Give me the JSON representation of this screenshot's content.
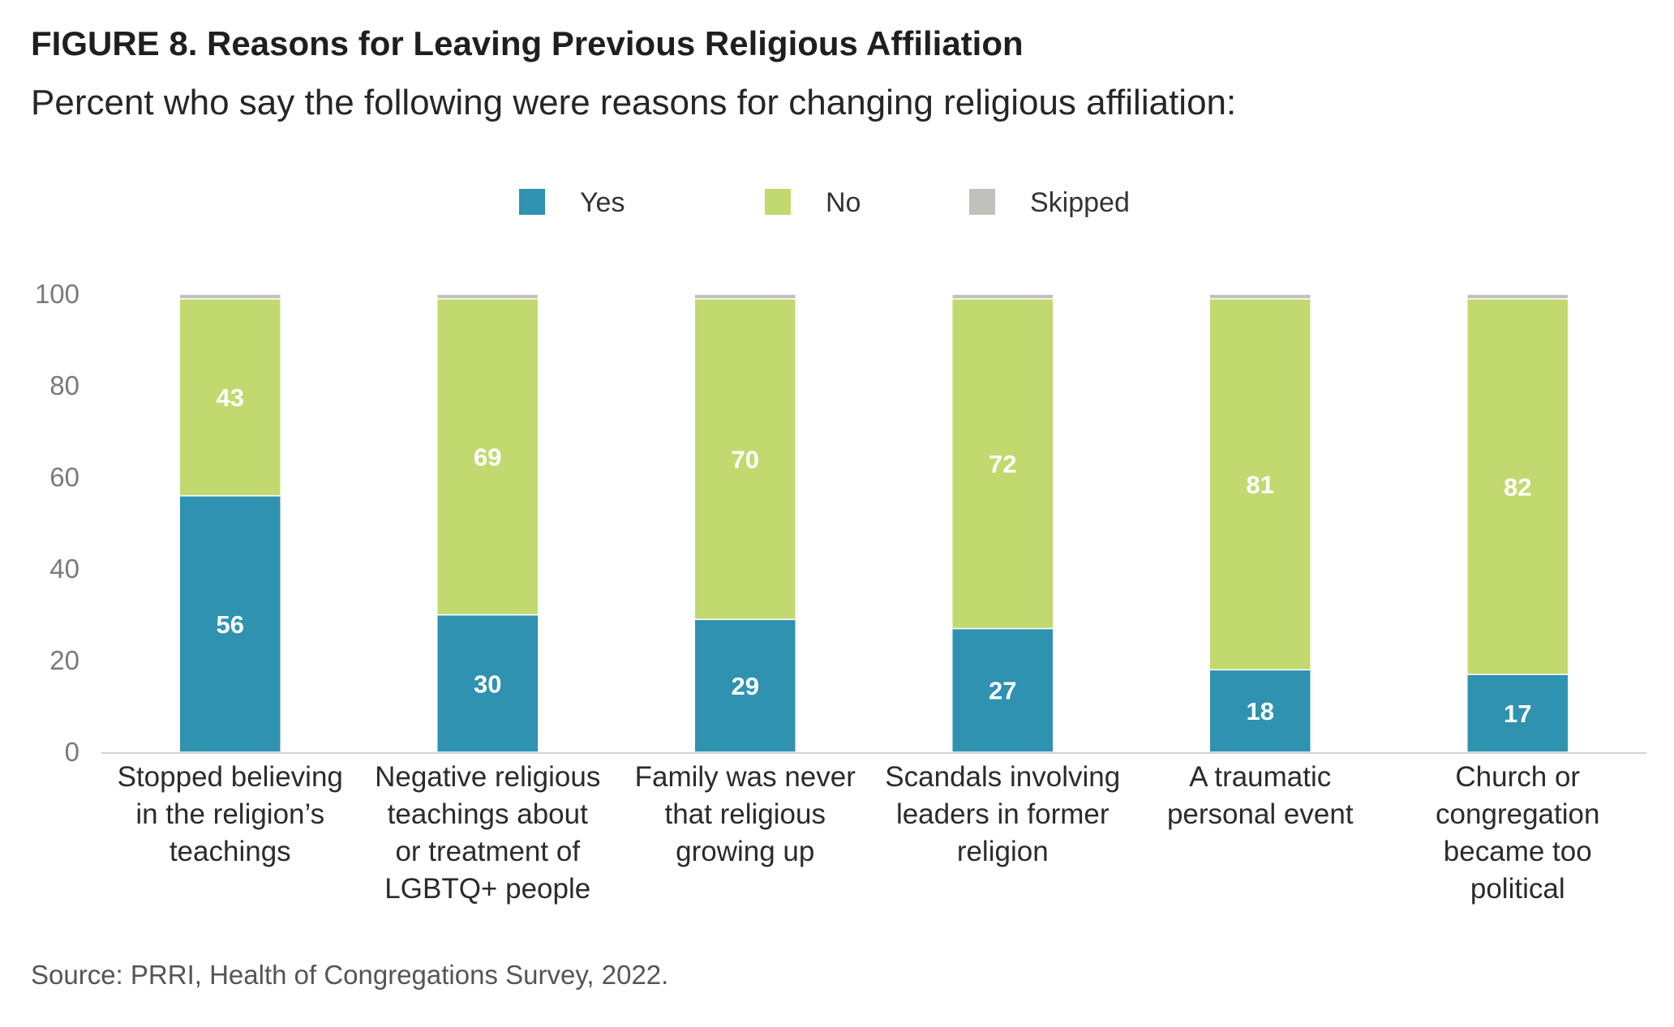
{
  "title": "FIGURE 8. Reasons for Leaving Previous Religious Affiliation",
  "subtitle": "Percent who say the following were reasons for changing religious affiliation:",
  "source": "Source: PRRI, Health of Congregations Survey, 2022.",
  "colors": {
    "yes": "#2e92b0",
    "no": "#c1d96e",
    "skipped": "#c0c0bc",
    "axis": "#d4d4d4"
  },
  "chart_data": {
    "type": "bar",
    "stacked": true,
    "categories": [
      [
        "Stopped believing",
        "in the religion’s",
        "teachings"
      ],
      [
        "Negative religious",
        "teachings about",
        "or treatment of",
        "LGBTQ+ people"
      ],
      [
        "Family was never",
        "that religious",
        "growing up"
      ],
      [
        "Scandals involving",
        "leaders in former",
        "religion"
      ],
      [
        "A traumatic",
        "personal event"
      ],
      [
        "Church or",
        "congregation",
        "became too",
        "political"
      ]
    ],
    "series": [
      {
        "name": "Yes",
        "values": [
          56,
          30,
          29,
          27,
          18,
          17
        ],
        "color": "#2e92b0"
      },
      {
        "name": "No",
        "values": [
          43,
          69,
          70,
          72,
          81,
          82
        ],
        "color": "#c1d96e"
      },
      {
        "name": "Skipped",
        "values": [
          1,
          1,
          1,
          1,
          1,
          1
        ],
        "color": "#c0c0bc",
        "show_labels": false
      }
    ],
    "ylim": [
      0,
      100
    ],
    "yticks": [
      0,
      20,
      40,
      60,
      80,
      100
    ],
    "legend_position": "top-center",
    "grid": false,
    "xlabel": "",
    "ylabel": ""
  }
}
